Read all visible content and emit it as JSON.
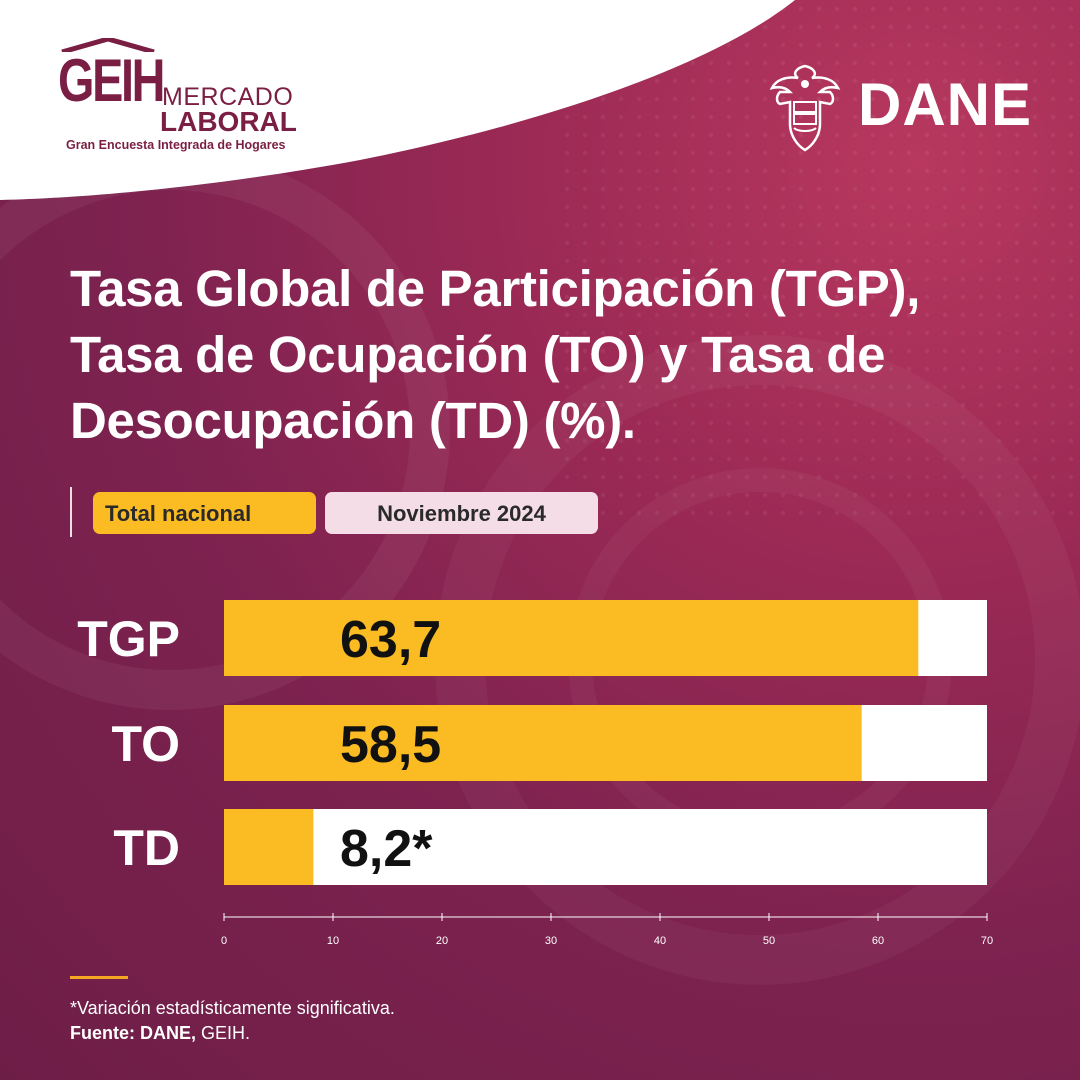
{
  "header": {
    "geih_logo": {
      "letters": "GEIH",
      "mercado": "MERCADO",
      "laboral": "LABORAL",
      "subtitle": "Gran Encuesta Integrada de Hogares"
    },
    "dane_logo": {
      "text": "DANE"
    }
  },
  "tags": {
    "scope": "Total nacional",
    "period": "Noviembre 2024"
  },
  "colors": {
    "bar": "#fbbb22",
    "track": "#ffffff",
    "background": "#7e2250",
    "text_dark": "#111111"
  },
  "chart_data": {
    "type": "bar",
    "orientation": "horizontal",
    "title": "Tasa Global de Participación (TGP), Tasa de Ocupación (TO) y Tasa de Desocupación (TD) (%).",
    "categories": [
      "TGP",
      "TO",
      "TD"
    ],
    "values": [
      63.7,
      58.5,
      8.2
    ],
    "value_labels": [
      "63,7",
      "58,5",
      "8,2*"
    ],
    "xlim": [
      0,
      70
    ],
    "xticks": [
      0,
      10,
      20,
      30,
      40,
      50,
      60,
      70
    ],
    "grid": false,
    "legend": "none"
  },
  "footer": {
    "footnote": "*Variación estadísticamente significativa.",
    "source_label": "Fuente:",
    "source_bold": "DANE,",
    "source_rest": "GEIH."
  }
}
